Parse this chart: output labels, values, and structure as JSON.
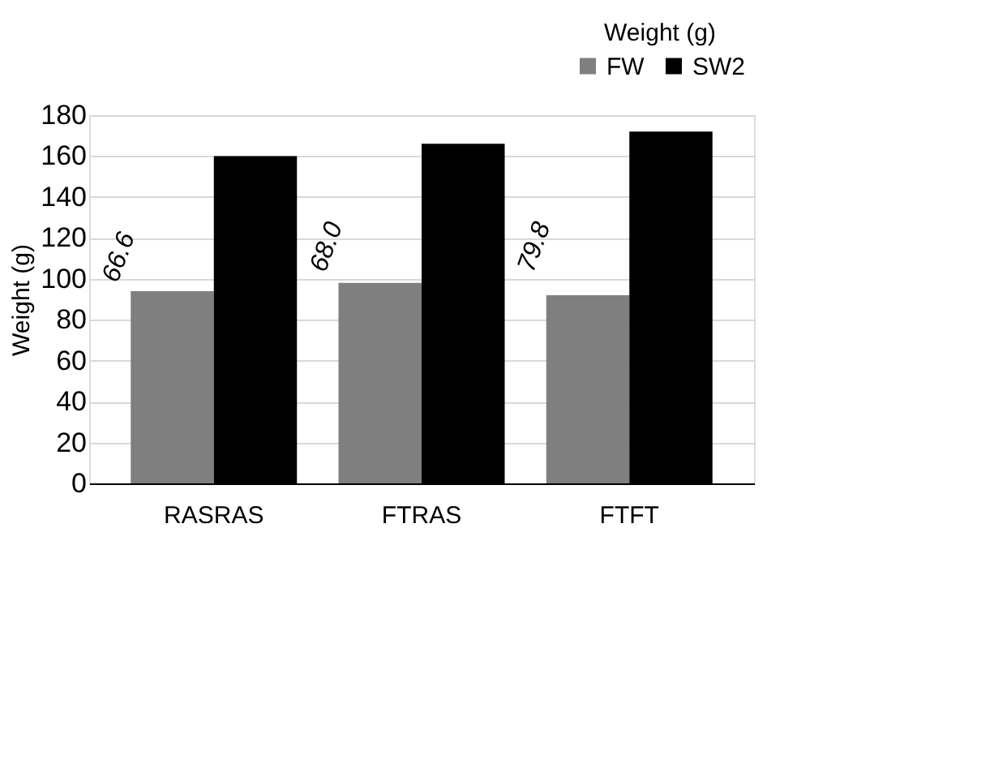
{
  "chart_data": {
    "type": "bar",
    "categories": [
      "RASRAS",
      "FTRAS",
      "FTFT"
    ],
    "series": [
      {
        "name": "FW",
        "color": "#7f7f7f",
        "values": [
          94,
          98,
          92
        ]
      },
      {
        "name": "SW2",
        "color": "#000000",
        "values": [
          160,
          166,
          172
        ]
      }
    ],
    "ylabel": "Weight (g)",
    "legend_title": "Weight (g)",
    "legend": "top right",
    "ylim": [
      0,
      180
    ],
    "yticks": [
      0,
      20,
      40,
      60,
      80,
      100,
      120,
      140,
      160,
      180
    ],
    "grid": "y",
    "annotations": [
      "66.6",
      "68.0",
      "79.8"
    ]
  }
}
